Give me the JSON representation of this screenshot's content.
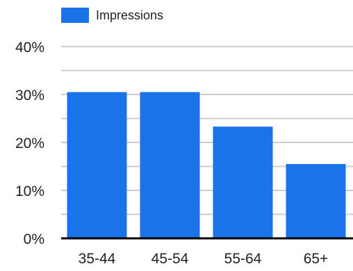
{
  "chart_data": {
    "type": "bar",
    "categories": [
      "35-44",
      "45-54",
      "55-64",
      "65+"
    ],
    "series": [
      {
        "name": "Impressions",
        "values": [
          30.5,
          30.5,
          23.3,
          15.5
        ]
      }
    ],
    "y_ticks": [
      "0%",
      "10%",
      "20%",
      "30%",
      "40%"
    ],
    "ylim": [
      0,
      40
    ],
    "grid": true,
    "legend_position": "top-left",
    "title": "",
    "xlabel": "",
    "ylabel": ""
  },
  "colors": {
    "bar": "#1a73e8",
    "grid": "#cccccc",
    "axis": "#000000",
    "text": "#222222"
  }
}
